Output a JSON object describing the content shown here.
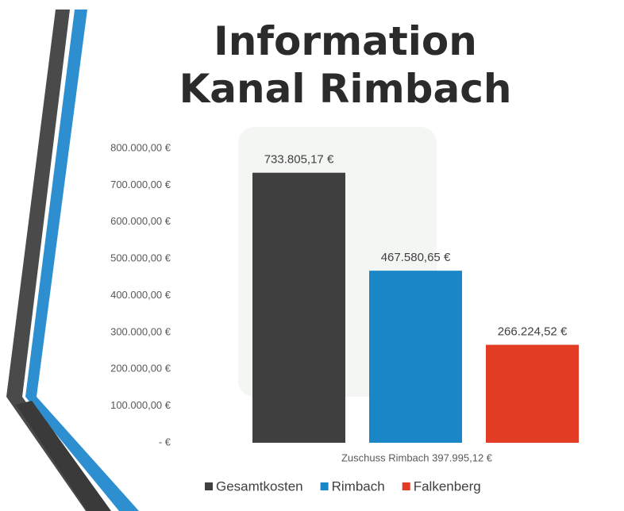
{
  "chart_data": {
    "type": "bar",
    "title": "Information Kanal Rimbach",
    "categories": [
      "Zuschuss Rimbach 397.995,12 €"
    ],
    "series": [
      {
        "name": "Gesamtkosten",
        "color": "#404040",
        "values": [
          733805.17
        ],
        "value_labels": [
          "733.805,17 €"
        ]
      },
      {
        "name": "Rimbach",
        "color": "#1a86c8",
        "values": [
          467580.65
        ],
        "value_labels": [
          "467.580,65 €"
        ]
      },
      {
        "name": "Falkenberg",
        "color": "#e23c25",
        "values": [
          266224.52
        ],
        "value_labels": [
          "266.224,52 €"
        ]
      }
    ],
    "ylim": [
      0,
      800000
    ],
    "yticks": [
      {
        "value": 0,
        "label": "-   €"
      },
      {
        "value": 100000,
        "label": "100.000,00 €"
      },
      {
        "value": 200000,
        "label": "200.000,00 €"
      },
      {
        "value": 300000,
        "label": "300.000,00 €"
      },
      {
        "value": 400000,
        "label": "400.000,00 €"
      },
      {
        "value": 500000,
        "label": "500.000,00 €"
      },
      {
        "value": 600000,
        "label": "600.000,00 €"
      },
      {
        "value": 700000,
        "label": "700.000,00 €"
      },
      {
        "value": 800000,
        "label": "800.000,00 €"
      }
    ],
    "grid": false,
    "legend": "bottom"
  }
}
